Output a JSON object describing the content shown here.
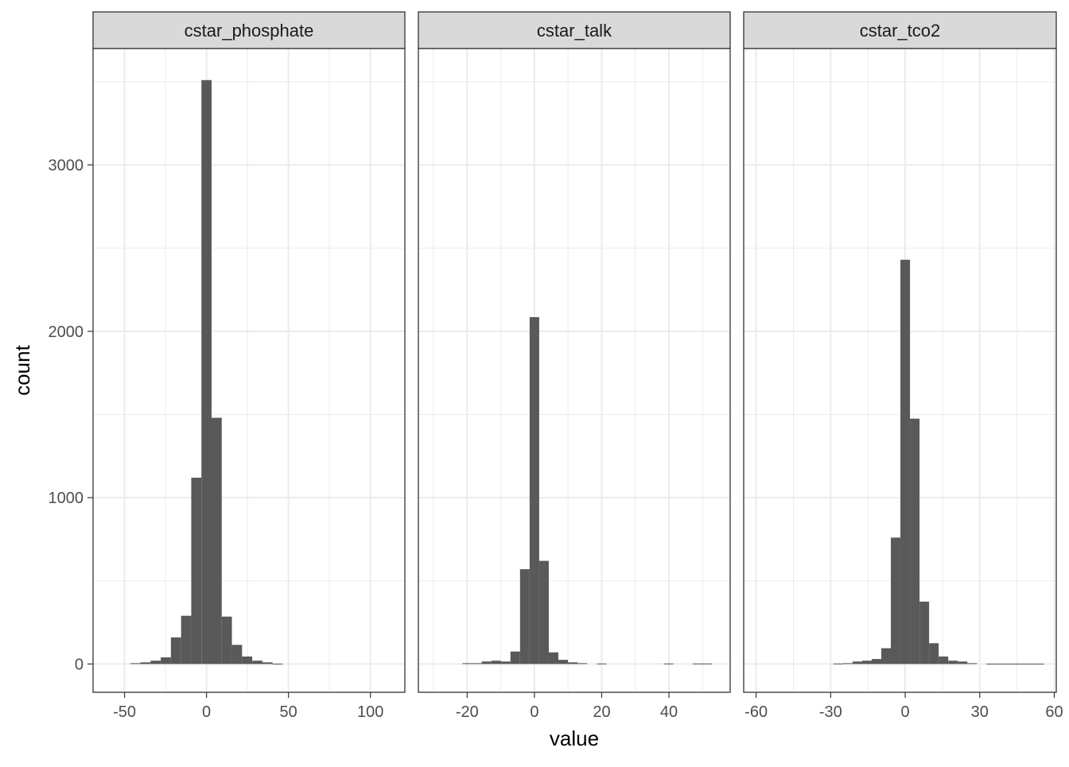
{
  "chart_data": {
    "type": "bar",
    "xlabel": "value",
    "ylabel": "count",
    "y_ticks": [
      0,
      1000,
      2000,
      3000
    ],
    "grid": true,
    "colors": {
      "bar": "#595959",
      "strip_bg": "#d9d9d9",
      "grid": "#ebebeb",
      "border": "#333333",
      "tick_label": "#4d4d4d"
    },
    "ylim": [
      -170,
      3700
    ],
    "panels": [
      {
        "title": "cstar_phosphate",
        "xlim": [
          -69.2,
          121
        ],
        "x_ticks": [
          -50,
          0,
          50,
          100
        ],
        "x_tick_labels": [
          "-50",
          "0",
          "50",
          "100"
        ],
        "binwidth": 6.2,
        "bins": [
          {
            "x": -43.4,
            "count": 5
          },
          {
            "x": -37.2,
            "count": 10
          },
          {
            "x": -31.0,
            "count": 20
          },
          {
            "x": -24.8,
            "count": 40
          },
          {
            "x": -18.6,
            "count": 160
          },
          {
            "x": -12.4,
            "count": 290
          },
          {
            "x": -6.2,
            "count": 1120
          },
          {
            "x": 0.0,
            "count": 3510
          },
          {
            "x": 6.2,
            "count": 1480
          },
          {
            "x": 12.4,
            "count": 285
          },
          {
            "x": 18.6,
            "count": 115
          },
          {
            "x": 24.8,
            "count": 45
          },
          {
            "x": 31.0,
            "count": 20
          },
          {
            "x": 37.2,
            "count": 10
          },
          {
            "x": 43.4,
            "count": 2
          }
        ]
      },
      {
        "title": "cstar_talk",
        "xlim": [
          -34.5,
          58.2
        ],
        "x_ticks": [
          -20,
          0,
          20,
          40
        ],
        "x_tick_labels": [
          "-20",
          "0",
          "20",
          "40"
        ],
        "binwidth": 2.85,
        "bins": [
          {
            "x": -19.95,
            "count": 5
          },
          {
            "x": -17.1,
            "count": 5
          },
          {
            "x": -14.25,
            "count": 15
          },
          {
            "x": -11.4,
            "count": 20
          },
          {
            "x": -8.55,
            "count": 15
          },
          {
            "x": -5.7,
            "count": 75
          },
          {
            "x": -2.85,
            "count": 570
          },
          {
            "x": 0.0,
            "count": 2085
          },
          {
            "x": 2.85,
            "count": 620
          },
          {
            "x": 5.7,
            "count": 70
          },
          {
            "x": 8.55,
            "count": 25
          },
          {
            "x": 11.4,
            "count": 10
          },
          {
            "x": 14.25,
            "count": 5
          },
          {
            "x": 19.95,
            "count": 3
          },
          {
            "x": 39.9,
            "count": 3
          },
          {
            "x": 48.45,
            "count": 3
          },
          {
            "x": 51.3,
            "count": 3
          }
        ]
      },
      {
        "title": "cstar_tco2",
        "xlim": [
          -65,
          60.8
        ],
        "x_ticks": [
          -60,
          -30,
          0,
          30,
          60
        ],
        "x_tick_labels": [
          "-60",
          "-30",
          "0",
          "30",
          "60"
        ],
        "binwidth": 3.85,
        "bins": [
          {
            "x": -26.95,
            "count": 3
          },
          {
            "x": -23.1,
            "count": 5
          },
          {
            "x": -19.25,
            "count": 15
          },
          {
            "x": -15.4,
            "count": 20
          },
          {
            "x": -11.55,
            "count": 30
          },
          {
            "x": -7.7,
            "count": 95
          },
          {
            "x": -3.85,
            "count": 760
          },
          {
            "x": 0.0,
            "count": 2430
          },
          {
            "x": 3.85,
            "count": 1475
          },
          {
            "x": 7.7,
            "count": 375
          },
          {
            "x": 11.55,
            "count": 125
          },
          {
            "x": 15.4,
            "count": 45
          },
          {
            "x": 19.25,
            "count": 20
          },
          {
            "x": 23.1,
            "count": 15
          },
          {
            "x": 26.95,
            "count": 5
          },
          {
            "x": 34.65,
            "count": 2
          },
          {
            "x": 38.5,
            "count": 2
          },
          {
            "x": 42.35,
            "count": 2
          },
          {
            "x": 46.2,
            "count": 2
          },
          {
            "x": 50.05,
            "count": 2
          },
          {
            "x": 53.9,
            "count": 2
          }
        ]
      }
    ]
  }
}
